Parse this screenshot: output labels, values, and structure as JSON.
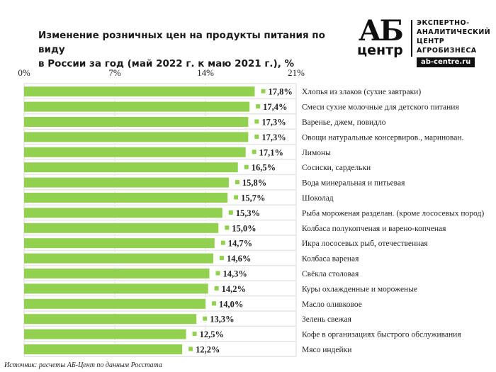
{
  "header": {
    "title_line1": "Изменение розничных цен на продукты питания по виду",
    "title_line2": "в России за год (май 2022 г. к маю 2021 г.), %"
  },
  "logo": {
    "mark_top": "АБ",
    "mark_bottom": "центр",
    "tagline": "ЭКСПЕРТНО-\nАНАЛИТИЧЕСКИЙ\nЦЕНТР\nАГРОБИЗНЕСА",
    "url": "ab-centre.ru"
  },
  "footer": {
    "source_label": "Источник:",
    "source_text": "расчеты АБ-Цент по данным Росстата"
  },
  "colors": {
    "bar": "#92d050",
    "marker": "#92d050",
    "grid": "#d9d9d9",
    "row_separator": "#e6e6e6"
  },
  "chart_data": {
    "type": "bar",
    "orientation": "horizontal",
    "title": "Изменение розничных цен на продукты питания по виду в России за год (май 2022 г. к маю 2021 г.), %",
    "xlabel": "",
    "ylabel": "",
    "xlim": [
      0,
      21
    ],
    "x_ticks": [
      0,
      7,
      14,
      21
    ],
    "x_tick_labels": [
      "0%",
      "7%",
      "14%",
      "21%"
    ],
    "grid": true,
    "legend": "none",
    "categories": [
      "Хлопья из злаков (сухие завтраки)",
      "Смеси сухие молочные для детского питания",
      "Варенье, джем, повидло",
      "Овощи натуральные консервиров., маринован.",
      "Лимоны",
      "Сосиски, сардельки",
      "Вода минеральная и питьевая",
      "Шоколад",
      "Рыба мороженая разделан. (кроме лососевых пород)",
      "Колбаса полукопченая и варено-копченая",
      "Икра лососевых рыб, отечественная",
      "Колбаса вареная",
      "Свёкла столовая",
      "Куры охлажденные и мороженые",
      "Масло оливковое",
      "Зелень свежая",
      "Кофе в организациях быстрого обслуживания",
      "Мясо индейки"
    ],
    "values": [
      17.8,
      17.4,
      17.3,
      17.3,
      17.1,
      16.5,
      15.8,
      15.7,
      15.3,
      15.0,
      14.7,
      14.6,
      14.3,
      14.2,
      14.0,
      13.3,
      12.5,
      12.2
    ],
    "value_labels": [
      "17,8%",
      "17,4%",
      "17,3%",
      "17,3%",
      "17,1%",
      "16,5%",
      "15,8%",
      "15,7%",
      "15,3%",
      "15,0%",
      "14,7%",
      "14,6%",
      "14,3%",
      "14,2%",
      "14,0%",
      "13,3%",
      "12,5%",
      "12,2%"
    ]
  }
}
